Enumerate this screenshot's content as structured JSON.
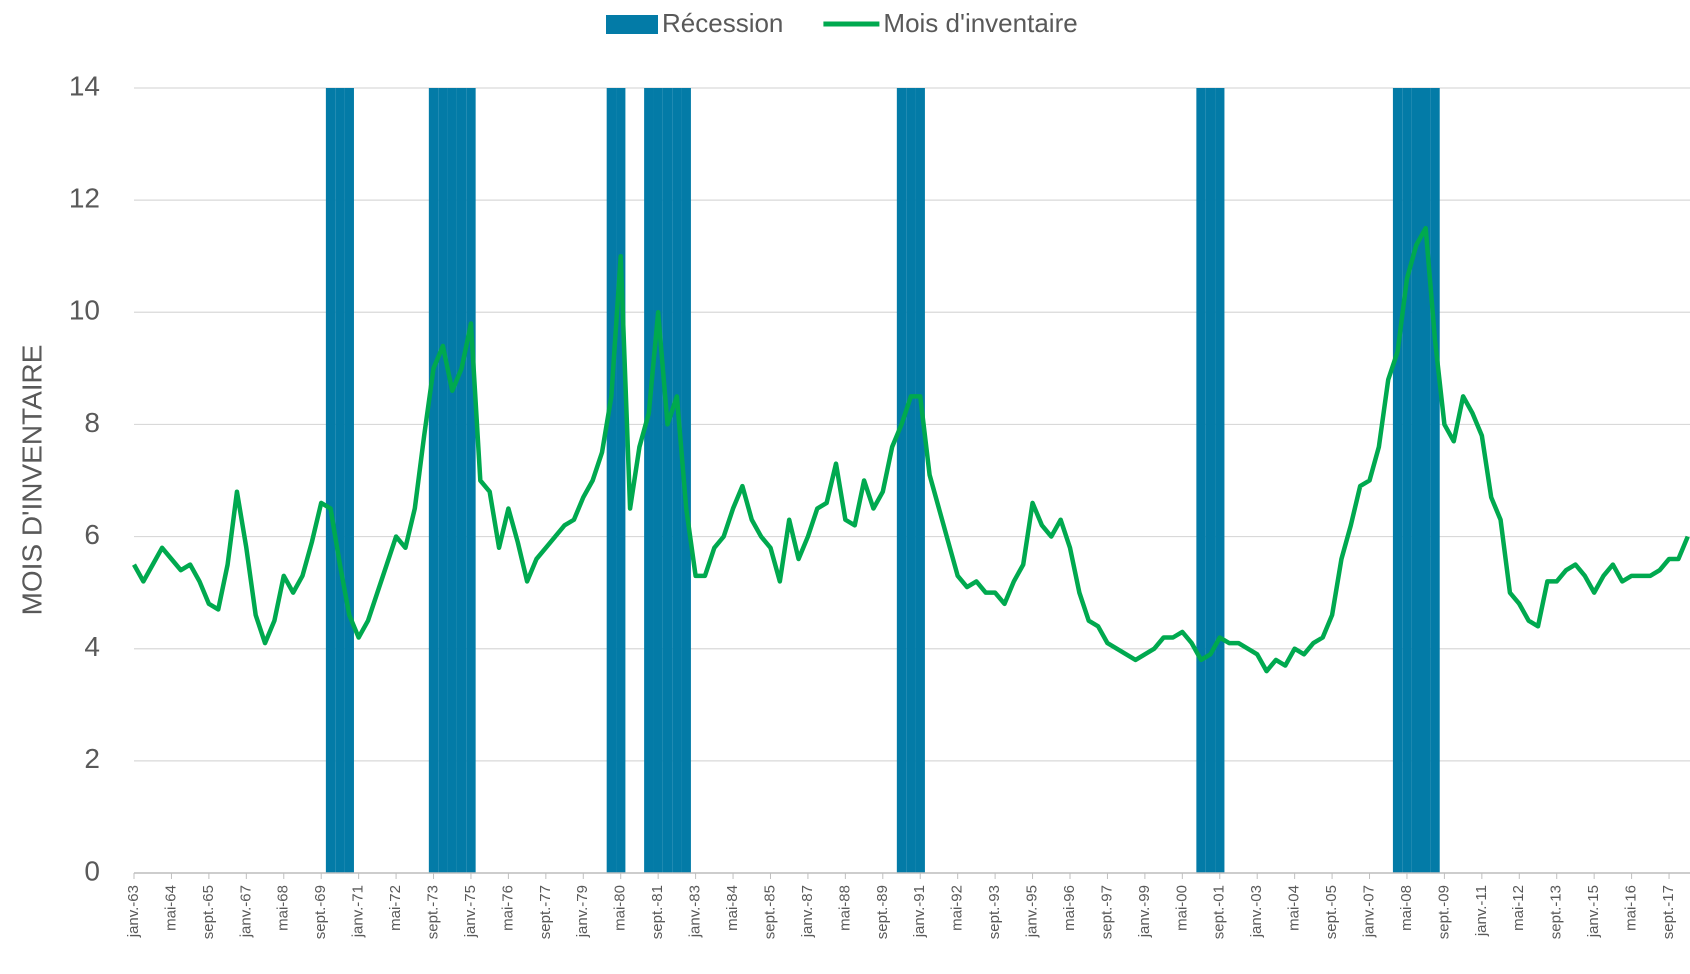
{
  "chart_data": {
    "type": "line",
    "y_label": "MOIS D'INVENTAIRE",
    "ylim": [
      0,
      14
    ],
    "yticks": [
      0,
      2,
      4,
      6,
      8,
      10,
      12,
      14
    ],
    "grid": true,
    "legend": "top",
    "categories": [
      "janv.-63",
      null,
      null,
      null,
      "mai-64",
      null,
      null,
      null,
      "sept.-65",
      null,
      null,
      null,
      "janv.-67",
      null,
      null,
      null,
      "mai-68",
      null,
      null,
      null,
      "sept.-69",
      null,
      null,
      null,
      "janv.-71",
      null,
      null,
      null,
      "mai-72",
      null,
      null,
      null,
      "sept.-73",
      null,
      null,
      null,
      "janv.-75",
      null,
      null,
      null,
      "mai-76",
      null,
      null,
      null,
      "sept.-77",
      null,
      null,
      null,
      "janv.-79",
      null,
      null,
      null,
      "mai-80",
      null,
      null,
      null,
      "sept.-81",
      null,
      null,
      null,
      "janv.-83",
      null,
      null,
      null,
      "mai-84",
      null,
      null,
      null,
      "sept.-85",
      null,
      null,
      null,
      "janv.-87",
      null,
      null,
      null,
      "mai-88",
      null,
      null,
      null,
      "sept.-89",
      null,
      null,
      null,
      "janv.-91",
      null,
      null,
      null,
      "mai-92",
      null,
      null,
      null,
      "sept.-93",
      null,
      null,
      null,
      "janv.-95",
      null,
      null,
      null,
      "mai-96",
      null,
      null,
      null,
      "sept.-97",
      null,
      null,
      null,
      "janv.-99",
      null,
      null,
      null,
      "mai-00",
      null,
      null,
      null,
      "sept.-01",
      null,
      null,
      null,
      "janv.-03",
      null,
      null,
      null,
      "mai-04",
      null,
      null,
      null,
      "sept.-05",
      null,
      null,
      null,
      "janv.-07",
      null,
      null,
      null,
      "mai-08",
      null,
      null,
      null,
      "sept.-09",
      null,
      null,
      null,
      "janv.-11",
      null,
      null,
      null,
      "mai-12",
      null,
      null,
      null,
      "sept.-13",
      null,
      null,
      null,
      "janv.-15",
      null,
      null,
      null,
      "mai-16",
      null,
      null,
      null,
      "sept.-17",
      null,
      null
    ],
    "series": [
      {
        "name": "Récession",
        "type": "bar",
        "color": "#037ba7",
        "values": [
          null,
          null,
          null,
          null,
          null,
          null,
          null,
          null,
          null,
          null,
          null,
          null,
          null,
          null,
          null,
          null,
          null,
          null,
          null,
          null,
          null,
          14,
          14,
          14,
          null,
          null,
          null,
          null,
          null,
          null,
          null,
          null,
          14,
          14,
          14,
          14,
          14,
          null,
          null,
          null,
          null,
          null,
          null,
          null,
          null,
          null,
          null,
          null,
          null,
          null,
          null,
          14,
          14,
          null,
          null,
          14,
          14,
          14,
          14,
          14,
          null,
          null,
          null,
          null,
          null,
          null,
          null,
          null,
          null,
          null,
          null,
          null,
          null,
          null,
          null,
          null,
          null,
          null,
          null,
          null,
          null,
          null,
          14,
          14,
          14,
          null,
          null,
          null,
          null,
          null,
          null,
          null,
          null,
          null,
          null,
          null,
          null,
          null,
          null,
          null,
          null,
          null,
          null,
          null,
          null,
          null,
          null,
          null,
          null,
          null,
          null,
          null,
          null,
          null,
          14,
          14,
          14,
          null,
          null,
          null,
          null,
          null,
          null,
          null,
          null,
          null,
          null,
          null,
          null,
          null,
          null,
          null,
          null,
          null,
          null,
          14,
          14,
          14,
          14,
          14,
          null,
          null,
          null,
          null,
          null,
          null,
          null,
          null,
          null,
          null,
          null,
          null,
          null,
          null,
          null,
          null,
          null,
          null,
          null,
          null,
          null,
          null,
          null,
          null,
          null,
          null,
          null
        ]
      },
      {
        "name": "Mois d'inventaire",
        "type": "line",
        "color": "#00a94f",
        "values": [
          5.5,
          5.2,
          5.5,
          5.8,
          5.6,
          5.4,
          5.5,
          5.2,
          4.8,
          4.7,
          5.5,
          6.8,
          5.8,
          4.6,
          4.1,
          4.5,
          5.3,
          5.0,
          5.3,
          5.9,
          6.6,
          6.5,
          5.5,
          4.6,
          4.2,
          4.5,
          5.0,
          5.5,
          6.0,
          5.8,
          6.5,
          7.8,
          9.0,
          9.4,
          8.6,
          9.0,
          9.8,
          7.0,
          6.8,
          5.8,
          6.5,
          5.9,
          5.2,
          5.6,
          5.8,
          6.0,
          6.2,
          6.3,
          6.7,
          7.0,
          7.5,
          8.5,
          11.0,
          6.5,
          7.6,
          8.2,
          10.0,
          8.0,
          8.5,
          6.5,
          5.3,
          5.3,
          5.8,
          6.0,
          6.5,
          6.9,
          6.3,
          6.0,
          5.8,
          5.2,
          6.3,
          5.6,
          6.0,
          6.5,
          6.6,
          7.3,
          6.3,
          6.2,
          7.0,
          6.5,
          6.8,
          7.6,
          8.0,
          8.5,
          8.5,
          7.1,
          6.5,
          5.9,
          5.3,
          5.1,
          5.2,
          5.0,
          5.0,
          4.8,
          5.2,
          5.5,
          6.6,
          6.2,
          6.0,
          6.3,
          5.8,
          5.0,
          4.5,
          4.4,
          4.1,
          4.0,
          3.9,
          3.8,
          3.9,
          4.0,
          4.2,
          4.2,
          4.3,
          4.1,
          3.8,
          3.9,
          4.2,
          4.1,
          4.1,
          4.0,
          3.9,
          3.6,
          3.8,
          3.7,
          4.0,
          3.9,
          4.1,
          4.2,
          4.6,
          5.6,
          6.2,
          6.9,
          7.0,
          7.6,
          8.8,
          9.3,
          10.6,
          11.2,
          11.5,
          9.5,
          8.0,
          7.7,
          8.5,
          8.2,
          7.8,
          6.7,
          6.3,
          5.0,
          4.8,
          4.5,
          4.4,
          5.2,
          5.2,
          5.4,
          5.5,
          5.3,
          5.0,
          5.3,
          5.5,
          5.2,
          5.3,
          5.3,
          5.3,
          5.4,
          5.6,
          5.6,
          6.0
        ]
      }
    ]
  }
}
